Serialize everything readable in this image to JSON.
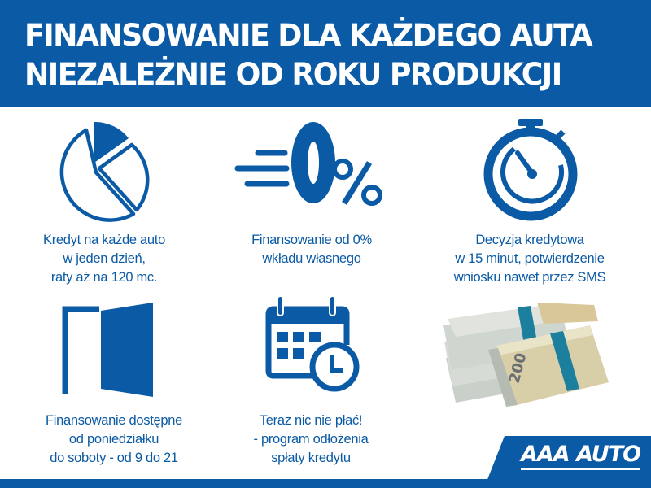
{
  "header": {
    "title_line1": "FINANSOWANIE DLA KAŻDEGO AUTA",
    "title_line2": "NIEZALEŻNIE OD ROKU PRODUKCJI"
  },
  "features": [
    {
      "icon": "pie-chart-icon",
      "lines": [
        "Kredyt na każde auto",
        "w jeden dzień,",
        "raty aż na 120 mc."
      ]
    },
    {
      "icon": "zero-percent-icon",
      "lines": [
        "Finansowanie od 0%",
        "wkładu własnego"
      ]
    },
    {
      "icon": "stopwatch-icon",
      "lines": [
        "Decyzja kredytowa",
        "w 15 minut, potwierdzenie",
        "wniosku nawet przez SMS"
      ]
    },
    {
      "icon": "open-door-icon",
      "lines": [
        "Finansowanie dostępne",
        "od poniedziałku",
        "do soboty - od 9 do 21"
      ]
    },
    {
      "icon": "calendar-clock-icon",
      "lines": [
        "Teraz nic nie płać!",
        "- program odłożenia",
        "spłaty kredytu"
      ]
    }
  ],
  "money_image": {
    "banknote_value": "200"
  },
  "logo": {
    "text": "AAA AUTO"
  },
  "colors": {
    "brand_blue": "#0a5aa6",
    "white": "#ffffff"
  }
}
